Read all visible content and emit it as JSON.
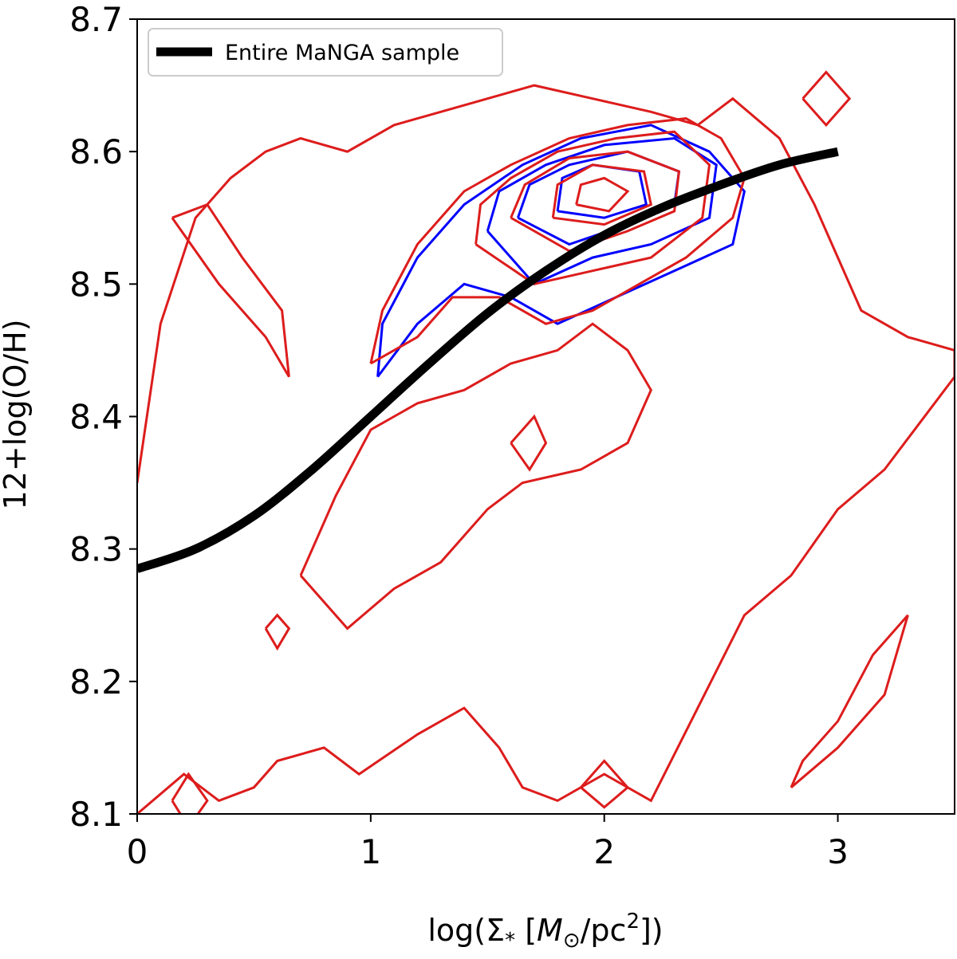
{
  "chart_data": {
    "type": "line",
    "xlabel_prefix": "log(Σ",
    "xlabel_sub": "*",
    "xlabel_open": "  [",
    "xlabel_M": "M",
    "xlabel_msub": "⊙",
    "xlabel_unit": "/pc",
    "xlabel_sup": "2",
    "xlabel_close": "])",
    "ylabel": "12+log(O/H)",
    "xlim": [
      0,
      3.5
    ],
    "ylim": [
      8.1,
      8.7
    ],
    "xticks": [
      0,
      1,
      2,
      3
    ],
    "xtick_labels": [
      "0",
      "1",
      "2",
      "3"
    ],
    "yticks": [
      8.1,
      8.2,
      8.3,
      8.4,
      8.5,
      8.6,
      8.7
    ],
    "ytick_labels": [
      "8.1",
      "8.2",
      "8.3",
      "8.4",
      "8.5",
      "8.6",
      "8.7"
    ],
    "legend": {
      "location": "top-left",
      "entry": "Entire MaNGA sample"
    },
    "series": [
      {
        "name": "Entire MaNGA sample",
        "color": "#000000",
        "x": [
          0,
          0.25,
          0.5,
          0.75,
          1.0,
          1.25,
          1.5,
          1.75,
          2.0,
          2.25,
          2.5,
          2.75,
          3.0
        ],
        "y": [
          8.285,
          8.3,
          8.325,
          8.36,
          8.4,
          8.44,
          8.478,
          8.51,
          8.537,
          8.558,
          8.575,
          8.59,
          8.6
        ]
      }
    ],
    "contours": [
      {
        "color": "#0000ff",
        "levels": [
          {
            "x": [
              1.03,
              1.2,
              1.4,
              1.6,
              1.8,
              2.05,
              2.3,
              2.55,
              2.6,
              2.45,
              2.2,
              1.9,
              1.65,
              1.4,
              1.2,
              1.05,
              1.03
            ],
            "y": [
              8.43,
              8.47,
              8.5,
              8.49,
              8.47,
              8.49,
              8.51,
              8.53,
              8.57,
              8.6,
              8.62,
              8.61,
              8.59,
              8.56,
              8.52,
              8.47,
              8.43
            ]
          },
          {
            "x": [
              1.5,
              1.7,
              1.95,
              2.2,
              2.45,
              2.48,
              2.3,
              2.0,
              1.75,
              1.55,
              1.5
            ],
            "y": [
              8.54,
              8.5,
              8.52,
              8.53,
              8.55,
              8.59,
              8.61,
              8.605,
              8.59,
              8.57,
              8.54
            ]
          },
          {
            "x": [
              1.63,
              1.85,
              2.1,
              2.3,
              2.32,
              2.1,
              1.85,
              1.68,
              1.63
            ],
            "y": [
              8.55,
              8.53,
              8.545,
              8.56,
              8.585,
              8.6,
              8.59,
              8.575,
              8.55
            ]
          },
          {
            "x": [
              1.8,
              2.0,
              2.18,
              2.15,
              1.95,
              1.82,
              1.8
            ],
            "y": [
              8.555,
              8.55,
              8.56,
              8.585,
              8.59,
              8.58,
              8.555
            ]
          }
        ]
      },
      {
        "color": "#dd1c1c",
        "levels": [
          {
            "x": [
              0.0,
              0.2,
              0.35,
              0.5,
              0.6,
              0.8,
              0.95,
              1.2,
              1.4,
              1.55,
              1.65,
              1.8,
              2.0,
              2.2,
              2.4,
              2.6,
              2.8,
              3.0,
              3.2,
              3.5,
              3.5,
              3.3,
              3.1,
              3.0,
              2.9,
              2.75,
              2.55,
              2.4,
              2.2,
              1.95,
              1.7,
              1.5,
              1.3,
              1.1,
              0.9,
              0.7,
              0.55,
              0.4,
              0.25,
              0.1,
              0.0
            ],
            "y": [
              8.1,
              8.13,
              8.11,
              8.12,
              8.14,
              8.15,
              8.13,
              8.16,
              8.18,
              8.15,
              8.12,
              8.11,
              8.13,
              8.11,
              8.18,
              8.25,
              8.28,
              8.33,
              8.36,
              8.43,
              8.45,
              8.46,
              8.48,
              8.52,
              8.56,
              8.61,
              8.64,
              8.62,
              8.63,
              8.64,
              8.65,
              8.64,
              8.63,
              8.62,
              8.6,
              8.61,
              8.6,
              8.58,
              8.55,
              8.47,
              8.35
            ]
          },
          {
            "x": [
              1.0,
              1.2,
              1.35,
              1.55,
              1.75,
              1.95,
              2.15,
              2.35,
              2.55,
              2.6,
              2.5,
              2.35,
              2.1,
              1.85,
              1.6,
              1.4,
              1.2,
              1.05,
              1.0
            ],
            "y": [
              8.44,
              8.46,
              8.49,
              8.49,
              8.47,
              8.48,
              8.5,
              8.52,
              8.55,
              8.58,
              8.61,
              8.625,
              8.62,
              8.61,
              8.59,
              8.57,
              8.53,
              8.48,
              8.44
            ]
          },
          {
            "x": [
              0.7,
              0.9,
              1.1,
              1.3,
              1.5,
              1.65,
              1.9,
              2.1,
              2.2,
              2.1,
              1.95,
              1.8,
              1.6,
              1.4,
              1.2,
              1.0,
              0.85,
              0.7
            ],
            "y": [
              8.28,
              8.24,
              8.27,
              8.29,
              8.33,
              8.35,
              8.36,
              8.38,
              8.42,
              8.45,
              8.47,
              8.45,
              8.44,
              8.42,
              8.41,
              8.39,
              8.34,
              8.28
            ]
          },
          {
            "x": [
              1.45,
              1.7,
              1.95,
              2.2,
              2.42,
              2.45,
              2.3,
              2.05,
              1.8,
              1.6,
              1.47,
              1.45
            ],
            "y": [
              8.53,
              8.5,
              8.51,
              8.52,
              8.55,
              8.59,
              8.615,
              8.61,
              8.6,
              8.58,
              8.56,
              8.53
            ]
          },
          {
            "x": [
              1.6,
              1.85,
              2.1,
              2.3,
              2.32,
              2.1,
              1.85,
              1.66,
              1.6
            ],
            "y": [
              8.55,
              8.525,
              8.54,
              8.555,
              8.585,
              8.6,
              8.595,
              8.575,
              8.55
            ]
          },
          {
            "x": [
              1.78,
              2.0,
              2.2,
              2.17,
              1.95,
              1.8,
              1.78
            ],
            "y": [
              8.55,
              8.545,
              8.56,
              8.585,
              8.59,
              8.575,
              8.55
            ]
          },
          {
            "x": [
              1.88,
              2.02,
              2.1,
              2.0,
              1.9,
              1.88
            ],
            "y": [
              8.56,
              8.555,
              8.57,
              8.58,
              8.575,
              8.56
            ]
          },
          {
            "x": [
              0.15,
              0.35,
              0.55,
              0.65,
              0.62,
              0.45,
              0.3,
              0.15
            ],
            "y": [
              8.55,
              8.5,
              8.46,
              8.43,
              8.48,
              8.52,
              8.56,
              8.55
            ]
          },
          {
            "x": [
              2.8,
              3.0,
              3.2,
              3.3,
              3.15,
              3.0,
              2.85,
              2.8
            ],
            "y": [
              8.12,
              8.15,
              8.19,
              8.25,
              8.22,
              8.17,
              8.14,
              8.12
            ]
          },
          {
            "x": [
              2.85,
              2.95,
              3.05,
              2.95,
              2.85
            ],
            "y": [
              8.64,
              8.66,
              8.64,
              8.62,
              8.64
            ]
          },
          {
            "x": [
              0.15,
              0.22,
              0.3,
              0.22,
              0.15
            ],
            "y": [
              8.11,
              8.13,
              8.11,
              8.09,
              8.11
            ]
          },
          {
            "x": [
              1.9,
              2.0,
              2.1,
              2.0,
              1.9
            ],
            "y": [
              8.12,
              8.14,
              8.12,
              8.105,
              8.12
            ]
          },
          {
            "x": [
              0.55,
              0.6,
              0.65,
              0.6,
              0.55
            ],
            "y": [
              8.24,
              8.25,
              8.24,
              8.225,
              8.24
            ]
          },
          {
            "x": [
              1.6,
              1.7,
              1.75,
              1.68,
              1.6
            ],
            "y": [
              8.38,
              8.4,
              8.38,
              8.36,
              8.38
            ]
          }
        ]
      }
    ]
  }
}
